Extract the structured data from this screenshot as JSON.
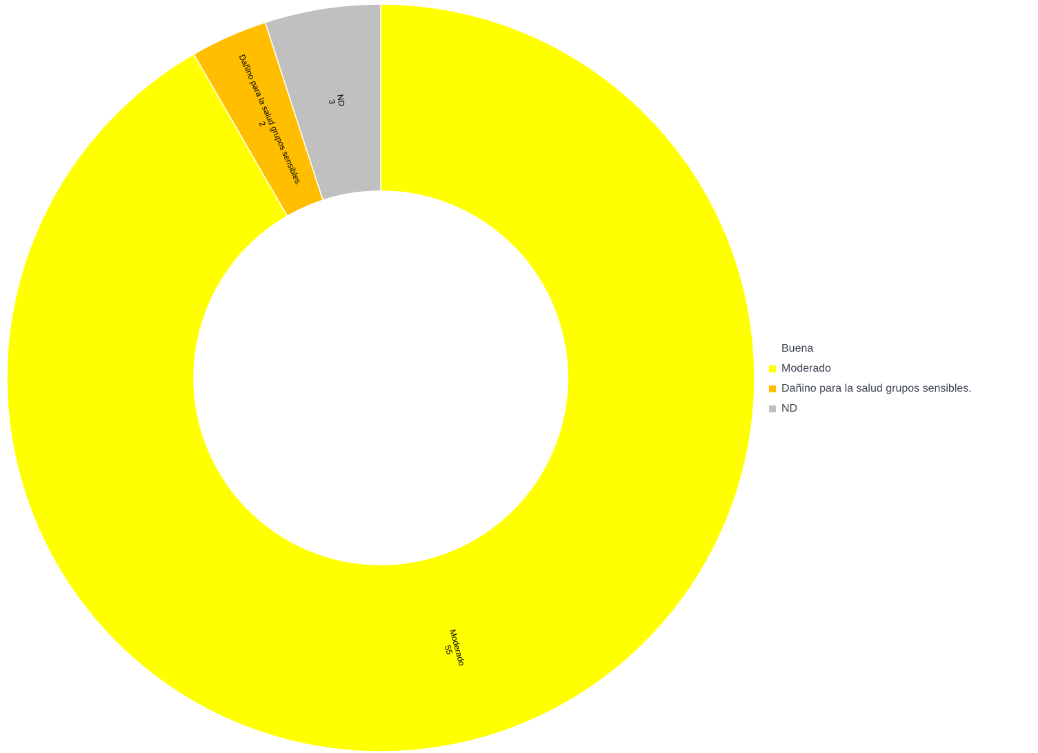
{
  "chart_data": {
    "type": "pie",
    "variant": "donut",
    "title": "",
    "categories": [
      "Buena",
      "Moderado",
      "Dañino para la salud grupos sensibles.",
      "ND"
    ],
    "values": [
      0,
      55,
      2,
      3
    ],
    "slice_labels": [
      {
        "name": "Moderado",
        "value": "55"
      },
      {
        "name": "Dañino para la salud grupos sensibles.",
        "value": "2"
      },
      {
        "name": "ND",
        "value": "3"
      }
    ],
    "colors": [
      "#6fd36f",
      "#ffff00",
      "#ffbf00",
      "#c0c0c0"
    ],
    "legend_placement": "right",
    "legend": [
      {
        "label": "Buena",
        "color": "#ffffff"
      },
      {
        "label": "Moderado",
        "color": "#ffff00"
      },
      {
        "label": "Dañino para la salud grupos sensibles.",
        "color": "#ffbf00"
      },
      {
        "label": "ND",
        "color": "#c0c0c0"
      }
    ]
  }
}
